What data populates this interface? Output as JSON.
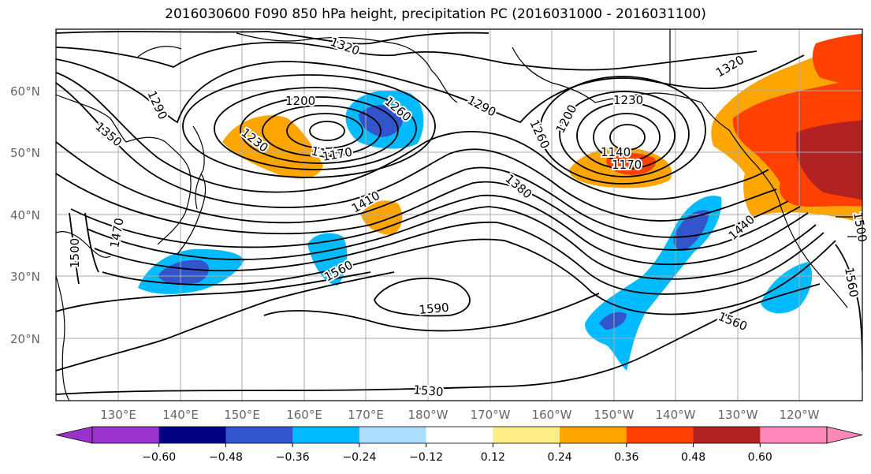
{
  "title": "2016030600 F090 850 hPa height, precipitation PC (2016031000 - 2016031100)",
  "lon_ticks": [
    "130°E",
    "140°E",
    "150°E",
    "160°E",
    "170°E",
    "180°W",
    "170°W",
    "160°W",
    "150°W",
    "140°W",
    "130°W",
    "120°W"
  ],
  "lat_ticks": [
    "20°N",
    "30°N",
    "40°N",
    "50°N",
    "60°N"
  ],
  "colorbar": {
    "colors": [
      "#9933cc",
      "#000080",
      "#3355cc",
      "#00bbff",
      "#aaddff",
      "#ffffff",
      "#ffee88",
      "#ffa500",
      "#ff4000",
      "#b22222",
      "#ff88bb"
    ],
    "tick_labels": [
      "−0.60",
      "−0.48",
      "−0.36",
      "−0.24",
      "−0.12",
      "0.12",
      "0.24",
      "0.36",
      "0.48",
      "0.60"
    ]
  },
  "contour_labels": [
    "1320",
    "1320",
    "1290",
    "1290",
    "1260",
    "1260",
    "1200",
    "1200",
    "1230",
    "1230",
    "1350",
    "1140",
    "1170",
    "1140",
    "1170",
    "1410",
    "1380",
    "1440",
    "1500",
    "1470",
    "1560",
    "1590",
    "1530",
    "1560",
    "1560",
    "1500"
  ]
}
